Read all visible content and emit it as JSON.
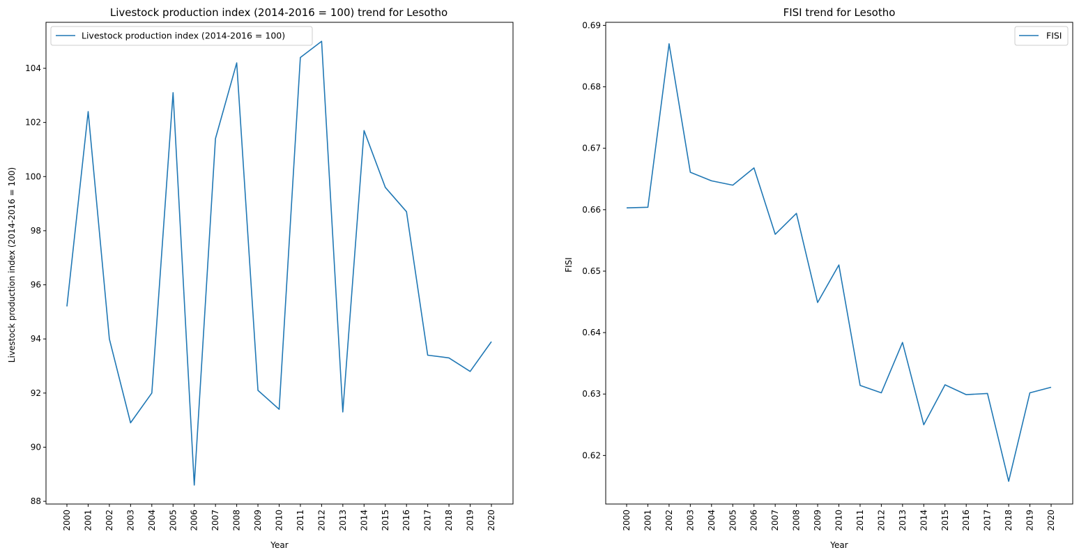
{
  "colors": {
    "line": "#1f77b4",
    "axes": "#000000",
    "legend_border": "#cccccc",
    "background": "#ffffff"
  },
  "chart_data": [
    {
      "type": "line",
      "title": "Livestock production index (2014-2016 = 100) trend for Lesotho",
      "xlabel": "Year",
      "ylabel": "Livestock production index (2014-2016 = 100)",
      "ylim": [
        87.9,
        105.7
      ],
      "yticks": [
        88,
        90,
        92,
        94,
        96,
        98,
        100,
        102,
        104
      ],
      "ytick_labels": [
        "88",
        "90",
        "92",
        "94",
        "96",
        "98",
        "100",
        "102",
        "104"
      ],
      "grid": false,
      "legend_position": "upper-left",
      "x": [
        "2000",
        "2001",
        "2002",
        "2003",
        "2004",
        "2005",
        "2006",
        "2007",
        "2008",
        "2009",
        "2010",
        "2011",
        "2012",
        "2013",
        "2014",
        "2015",
        "2016",
        "2017",
        "2018",
        "2019",
        "2020"
      ],
      "series": [
        {
          "name": "Livestock production index (2014-2016 = 100)",
          "values": [
            95.2,
            102.4,
            94.0,
            90.9,
            92.0,
            103.1,
            88.6,
            101.4,
            104.2,
            92.1,
            91.4,
            104.4,
            105.0,
            91.3,
            101.7,
            99.6,
            98.7,
            93.4,
            93.3,
            92.8,
            93.9
          ]
        }
      ]
    },
    {
      "type": "line",
      "title": "FISI trend for Lesotho",
      "xlabel": "Year",
      "ylabel": "FISI",
      "ylim": [
        0.6121,
        0.6905
      ],
      "yticks": [
        0.62,
        0.63,
        0.64,
        0.65,
        0.66,
        0.67,
        0.68,
        0.69
      ],
      "ytick_labels": [
        "0.62",
        "0.63",
        "0.64",
        "0.65",
        "0.66",
        "0.67",
        "0.68",
        "0.69"
      ],
      "grid": false,
      "legend_position": "upper-right",
      "x": [
        "2000",
        "2001",
        "2002",
        "2003",
        "2004",
        "2005",
        "2006",
        "2007",
        "2008",
        "2009",
        "2010",
        "2011",
        "2012",
        "2013",
        "2014",
        "2015",
        "2016",
        "2017",
        "2018",
        "2019",
        "2020"
      ],
      "series": [
        {
          "name": "FISI",
          "values": [
            0.6603,
            0.6604,
            0.687,
            0.6661,
            0.6647,
            0.664,
            0.6668,
            0.656,
            0.6594,
            0.6449,
            0.651,
            0.6314,
            0.6302,
            0.6384,
            0.625,
            0.6315,
            0.6299,
            0.6301,
            0.6158,
            0.6302,
            0.6311
          ]
        }
      ]
    }
  ]
}
